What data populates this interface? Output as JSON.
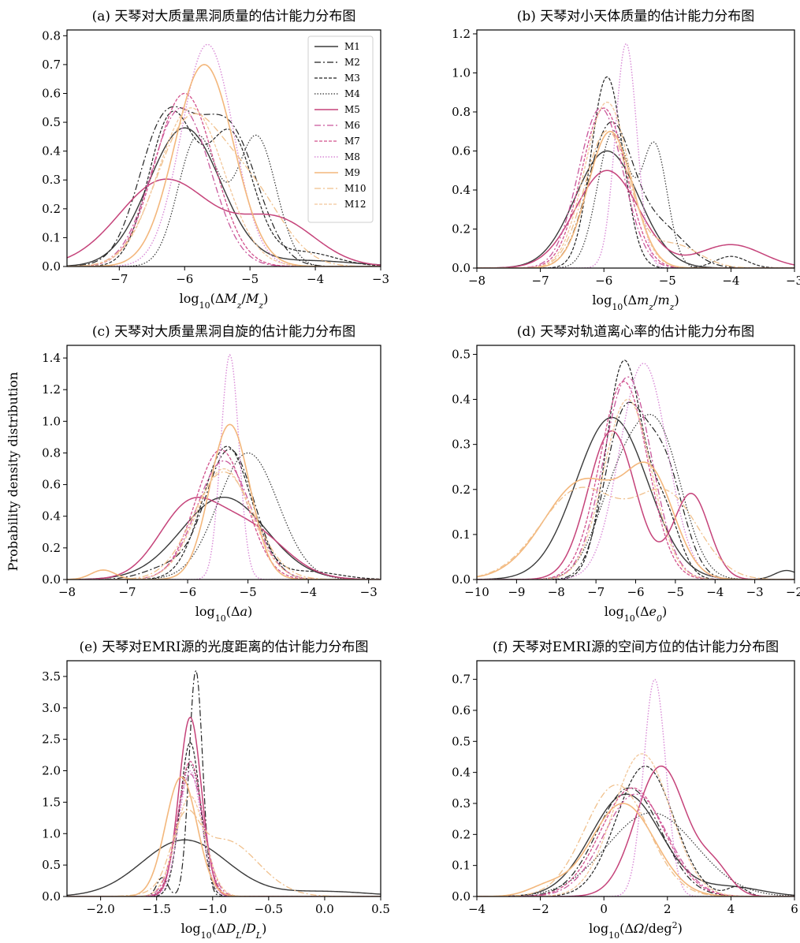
{
  "figure": {
    "ylabel": "Probability density distribution"
  },
  "series_styles": [
    {
      "name": "M1",
      "color": "#3a3a3a",
      "dash": "",
      "width": 1.4
    },
    {
      "name": "M2",
      "color": "#222222",
      "dash": "8,3,2,3",
      "width": 1.2
    },
    {
      "name": "M3",
      "color": "#222222",
      "dash": "4,2",
      "width": 1.2
    },
    {
      "name": "M4",
      "color": "#333333",
      "dash": "1.5,2",
      "width": 1.2
    },
    {
      "name": "M5",
      "color": "#c5437a",
      "dash": "",
      "width": 1.5
    },
    {
      "name": "M6",
      "color": "#c9589c",
      "dash": "8,3,2,3",
      "width": 1.3
    },
    {
      "name": "M7",
      "color": "#d2508c",
      "dash": "4,2",
      "width": 1.3
    },
    {
      "name": "M8",
      "color": "#d98ad6",
      "dash": "1.5,2",
      "width": 1.4
    },
    {
      "name": "M9",
      "color": "#f3b77c",
      "dash": "",
      "width": 1.6
    },
    {
      "name": "M10",
      "color": "#f0c08c",
      "dash": "8,3,2,3",
      "width": 1.3
    },
    {
      "name": "M12",
      "color": "#f2c79b",
      "dash": "4,2",
      "width": 1.3
    }
  ],
  "chart_data": [
    {
      "id": "a",
      "type": "line",
      "title": "(a) 天琴对大质量黑洞质量的估计能力分布图",
      "xlabel": "log₁₀(ΔMz/Mz)",
      "xlabel_parts": {
        "pre": "log",
        "sub1": "10",
        "mid": "(Δ",
        "var": "M",
        "sub2": "z",
        "mid2": "/",
        "var2": "M",
        "sub3": "z",
        "post": ")"
      },
      "xlim": [
        -7.8,
        -3
      ],
      "ylim": [
        0,
        0.82
      ],
      "xticks": [
        -7,
        -6,
        -5,
        -4,
        -3
      ],
      "yticks": [
        0.0,
        0.1,
        0.2,
        0.3,
        0.4,
        0.5,
        0.6,
        0.7,
        0.8
      ],
      "legend": {
        "placement": "top-right",
        "entries": [
          "M1",
          "M2",
          "M3",
          "M4",
          "M5",
          "M6",
          "M7",
          "M8",
          "M9",
          "M10",
          "M12"
        ]
      },
      "series": [
        {
          "name": "M1",
          "components": [
            [
              -6.0,
              0.55,
              0.48
            ],
            [
              -4.1,
              0.7,
              0.02
            ]
          ]
        },
        {
          "name": "M2",
          "components": [
            [
              -6.4,
              0.35,
              0.25
            ],
            [
              -5.9,
              0.55,
              0.38
            ],
            [
              -5.2,
              0.4,
              0.3
            ]
          ]
        },
        {
          "name": "M3",
          "components": [
            [
              -6.2,
              0.35,
              0.52
            ],
            [
              -5.3,
              0.35,
              0.45
            ],
            [
              -4.2,
              0.5,
              0.05
            ]
          ]
        },
        {
          "name": "M4",
          "components": [
            [
              -5.8,
              0.3,
              0.45
            ],
            [
              -4.9,
              0.3,
              0.45
            ]
          ]
        },
        {
          "name": "M5",
          "components": [
            [
              -6.3,
              0.7,
              0.3
            ],
            [
              -4.6,
              0.6,
              0.16
            ]
          ]
        },
        {
          "name": "M6",
          "components": [
            [
              -6.05,
              0.45,
              0.55
            ]
          ]
        },
        {
          "name": "M7",
          "components": [
            [
              -6.0,
              0.45,
              0.6
            ]
          ]
        },
        {
          "name": "M8",
          "components": [
            [
              -5.65,
              0.4,
              0.77
            ]
          ]
        },
        {
          "name": "M9",
          "components": [
            [
              -5.7,
              0.45,
              0.7
            ]
          ]
        },
        {
          "name": "M10",
          "components": [
            [
              -5.95,
              0.5,
              0.48
            ],
            [
              -5.0,
              0.5,
              0.25
            ]
          ]
        },
        {
          "name": "M12",
          "components": [
            [
              -5.9,
              0.5,
              0.55
            ]
          ]
        }
      ]
    },
    {
      "id": "b",
      "type": "line",
      "title": "(b) 天琴对小天体质量的估计能力分布图",
      "xlabel": "log₁₀(Δmz/mz)",
      "xlabel_parts": {
        "pre": "log",
        "sub1": "10",
        "mid": "(Δ",
        "var": "m",
        "sub2": "z",
        "mid2": "/",
        "var2": "m",
        "sub3": "z",
        "post": ")"
      },
      "xlim": [
        -8,
        -3
      ],
      "ylim": [
        0,
        1.22
      ],
      "xticks": [
        -8,
        -7,
        -6,
        -5,
        -4,
        -3
      ],
      "yticks": [
        0.0,
        0.2,
        0.4,
        0.6,
        0.8,
        1.0,
        1.2
      ],
      "legend": null,
      "series": [
        {
          "name": "M1",
          "components": [
            [
              -5.95,
              0.5,
              0.6
            ]
          ]
        },
        {
          "name": "M2",
          "components": [
            [
              -5.9,
              0.35,
              0.72
            ],
            [
              -5.1,
              0.4,
              0.2
            ]
          ]
        },
        {
          "name": "M3",
          "components": [
            [
              -5.95,
              0.25,
              0.98
            ],
            [
              -4.0,
              0.25,
              0.06
            ]
          ]
        },
        {
          "name": "M4",
          "components": [
            [
              -5.85,
              0.25,
              0.7
            ],
            [
              -5.2,
              0.2,
              0.62
            ]
          ]
        },
        {
          "name": "M5",
          "components": [
            [
              -5.95,
              0.5,
              0.5
            ],
            [
              -4.0,
              0.5,
              0.12
            ]
          ]
        },
        {
          "name": "M6",
          "components": [
            [
              -6.05,
              0.35,
              0.82
            ]
          ]
        },
        {
          "name": "M7",
          "components": [
            [
              -6.0,
              0.35,
              0.82
            ]
          ]
        },
        {
          "name": "M8",
          "components": [
            [
              -5.65,
              0.17,
              1.15
            ]
          ]
        },
        {
          "name": "M9",
          "components": [
            [
              -5.9,
              0.35,
              0.7
            ]
          ]
        },
        {
          "name": "M10",
          "components": [
            [
              -5.95,
              0.35,
              0.7
            ],
            [
              -4.9,
              0.4,
              0.12
            ]
          ]
        },
        {
          "name": "M12",
          "components": [
            [
              -5.95,
              0.35,
              0.85
            ]
          ]
        }
      ]
    },
    {
      "id": "c",
      "type": "line",
      "title": "(c) 天琴对大质量黑洞自旋的估计能力分布图",
      "xlabel": "log₁₀(Δa)",
      "xlabel_parts": {
        "pre": "log",
        "sub1": "10",
        "mid": "(Δ",
        "var": "a",
        "sub2": "",
        "mid2": "",
        "var2": "",
        "sub3": "",
        "post": ")"
      },
      "xlim": [
        -8,
        -2.8
      ],
      "ylim": [
        0,
        1.48
      ],
      "xticks": [
        -8,
        -7,
        -6,
        -5,
        -4,
        -3
      ],
      "yticks": [
        0.0,
        0.2,
        0.4,
        0.6,
        0.8,
        1.0,
        1.2,
        1.4
      ],
      "legend": null,
      "series": [
        {
          "name": "M1",
          "components": [
            [
              -5.4,
              0.7,
              0.52
            ]
          ]
        },
        {
          "name": "M2",
          "components": [
            [
              -6.3,
              0.4,
              0.08
            ],
            [
              -5.3,
              0.4,
              0.82
            ]
          ]
        },
        {
          "name": "M3",
          "components": [
            [
              -5.35,
              0.4,
              0.84
            ],
            [
              -4.0,
              0.5,
              0.05
            ]
          ]
        },
        {
          "name": "M4",
          "components": [
            [
              -5.0,
              0.5,
              0.8
            ]
          ]
        },
        {
          "name": "M5",
          "components": [
            [
              -6.0,
              0.5,
              0.42
            ],
            [
              -5.0,
              0.6,
              0.32
            ]
          ]
        },
        {
          "name": "M6",
          "components": [
            [
              -5.4,
              0.45,
              0.75
            ]
          ]
        },
        {
          "name": "M7",
          "components": [
            [
              -5.45,
              0.42,
              0.82
            ]
          ]
        },
        {
          "name": "M8",
          "components": [
            [
              -5.3,
              0.15,
              1.42
            ]
          ]
        },
        {
          "name": "M9",
          "components": [
            [
              -7.4,
              0.2,
              0.06
            ],
            [
              -5.3,
              0.33,
              0.98
            ]
          ]
        },
        {
          "name": "M10",
          "components": [
            [
              -5.4,
              0.5,
              0.68
            ]
          ]
        },
        {
          "name": "M12",
          "components": [
            [
              -5.4,
              0.45,
              0.7
            ]
          ]
        }
      ]
    },
    {
      "id": "d",
      "type": "line",
      "title": "(d) 天琴对轨道离心率的估计能力分布图",
      "xlabel": "log₁₀(Δe₀)",
      "xlabel_parts": {
        "pre": "log",
        "sub1": "10",
        "mid": "(Δ",
        "var": "e",
        "sub2": "0",
        "mid2": "",
        "var2": "",
        "sub3": "",
        "post": ")"
      },
      "xlim": [
        -10,
        -2
      ],
      "ylim": [
        0,
        0.52
      ],
      "xticks": [
        -10,
        -9,
        -8,
        -7,
        -6,
        -5,
        -4,
        -3,
        -2
      ],
      "yticks": [
        0.0,
        0.1,
        0.2,
        0.3,
        0.4,
        0.5
      ],
      "legend": null,
      "series": [
        {
          "name": "M1",
          "components": [
            [
              -6.6,
              0.9,
              0.36
            ],
            [
              -2.2,
              0.3,
              0.02
            ]
          ]
        },
        {
          "name": "M2",
          "components": [
            [
              -6.3,
              0.5,
              0.35
            ],
            [
              -5.3,
              0.5,
              0.25
            ]
          ]
        },
        {
          "name": "M3",
          "components": [
            [
              -6.3,
              0.45,
              0.48
            ],
            [
              -5.3,
              0.4,
              0.15
            ]
          ]
        },
        {
          "name": "M4",
          "components": [
            [
              -6.4,
              0.6,
              0.2
            ],
            [
              -5.4,
              0.6,
              0.3
            ]
          ]
        },
        {
          "name": "M5",
          "components": [
            [
              -6.6,
              0.6,
              0.33
            ],
            [
              -4.6,
              0.45,
              0.19
            ]
          ]
        },
        {
          "name": "M6",
          "components": [
            [
              -6.2,
              0.6,
              0.45
            ]
          ]
        },
        {
          "name": "M7",
          "components": [
            [
              -6.3,
              0.6,
              0.44
            ]
          ]
        },
        {
          "name": "M8",
          "components": [
            [
              -5.8,
              0.6,
              0.48
            ]
          ]
        },
        {
          "name": "M9",
          "components": [
            [
              -7.3,
              1.0,
              0.22
            ],
            [
              -5.6,
              0.6,
              0.2
            ]
          ]
        },
        {
          "name": "M10",
          "components": [
            [
              -7.4,
              1.0,
              0.2
            ],
            [
              -5.2,
              0.8,
              0.18
            ]
          ]
        },
        {
          "name": "M12",
          "components": [
            [
              -6.2,
              0.6,
              0.4
            ]
          ]
        }
      ]
    },
    {
      "id": "e",
      "type": "line",
      "title": "(e) 天琴对EMRI源的光度距离的估计能力分布图",
      "xlabel": "log₁₀(ΔDL/DL)",
      "xlabel_parts": {
        "pre": "log",
        "sub1": "10",
        "mid": "(Δ",
        "var": "D",
        "sub2": "L",
        "mid2": "/",
        "var2": "D",
        "sub3": "L",
        "post": ")"
      },
      "xlim": [
        -2.3,
        0.5
      ],
      "ylim": [
        0,
        3.75
      ],
      "xticks": [
        -2.0,
        -1.5,
        -1.0,
        -0.5,
        0.0,
        0.5
      ],
      "yticks": [
        0.0,
        0.5,
        1.0,
        1.5,
        2.0,
        2.5,
        3.0,
        3.5
      ],
      "legend": null,
      "series": [
        {
          "name": "M1",
          "components": [
            [
              -1.25,
              0.38,
              0.9
            ],
            [
              0.0,
              0.4,
              0.08
            ]
          ]
        },
        {
          "name": "M2",
          "components": [
            [
              -1.45,
              0.05,
              0.3
            ],
            [
              -1.15,
              0.06,
              3.6
            ]
          ]
        },
        {
          "name": "M3",
          "components": [
            [
              -1.2,
              0.09,
              2.45
            ]
          ]
        },
        {
          "name": "M4",
          "components": [
            [
              -1.2,
              0.11,
              2.1
            ]
          ]
        },
        {
          "name": "M5",
          "components": [
            [
              -1.2,
              0.1,
              2.85
            ]
          ]
        },
        {
          "name": "M6",
          "components": [
            [
              -1.2,
              0.12,
              1.95
            ]
          ]
        },
        {
          "name": "M7",
          "components": [
            [
              -1.2,
              0.11,
              2.15
            ]
          ]
        },
        {
          "name": "M8",
          "components": [
            [
              -1.2,
              0.1,
              2.0
            ]
          ]
        },
        {
          "name": "M9",
          "components": [
            [
              -1.28,
              0.14,
              1.9
            ]
          ]
        },
        {
          "name": "M10",
          "components": [
            [
              -1.25,
              0.12,
              0.9
            ],
            [
              -0.9,
              0.3,
              0.9
            ]
          ]
        },
        {
          "name": "M12",
          "components": [
            [
              -1.2,
              0.13,
              1.6
            ]
          ]
        }
      ]
    },
    {
      "id": "f",
      "type": "line",
      "title": "(f) 天琴对EMRI源的空间方位的估计能力分布图",
      "xlabel": "log₁₀(ΔΩ/deg²)",
      "xlabel_parts": {
        "pre": "log",
        "sub1": "10",
        "mid": "(Δ",
        "var": "Ω",
        "sub2": "",
        "mid2": "/deg",
        "var2": "",
        "sub3": "",
        "post": ")",
        "sup": "2"
      },
      "xlim": [
        -4,
        6
      ],
      "ylim": [
        0,
        0.76
      ],
      "xticks": [
        -4,
        -2,
        0,
        2,
        4,
        6
      ],
      "yticks": [
        0.0,
        0.1,
        0.2,
        0.3,
        0.4,
        0.5,
        0.6,
        0.7
      ],
      "legend": null,
      "series": [
        {
          "name": "M1",
          "components": [
            [
              0.7,
              1.1,
              0.33
            ],
            [
              4.0,
              1.0,
              0.03
            ]
          ]
        },
        {
          "name": "M2",
          "components": [
            [
              0.8,
              1.0,
              0.35
            ]
          ]
        },
        {
          "name": "M3",
          "components": [
            [
              1.3,
              0.9,
              0.42
            ],
            [
              4.2,
              0.3,
              0.03
            ]
          ]
        },
        {
          "name": "M4",
          "components": [
            [
              1.5,
              1.4,
              0.27
            ]
          ]
        },
        {
          "name": "M5",
          "components": [
            [
              1.8,
              0.8,
              0.42
            ],
            [
              3.5,
              0.5,
              0.08
            ]
          ]
        },
        {
          "name": "M6",
          "components": [
            [
              1.0,
              1.0,
              0.33
            ]
          ]
        },
        {
          "name": "M7",
          "components": [
            [
              0.9,
              1.0,
              0.35
            ]
          ]
        },
        {
          "name": "M8",
          "components": [
            [
              1.6,
              0.35,
              0.7
            ]
          ]
        },
        {
          "name": "M9",
          "components": [
            [
              0.6,
              1.0,
              0.3
            ],
            [
              -1.8,
              0.6,
              0.03
            ]
          ]
        },
        {
          "name": "M10",
          "components": [
            [
              0.4,
              1.0,
              0.36
            ]
          ]
        },
        {
          "name": "M12",
          "components": [
            [
              1.2,
              0.9,
              0.46
            ]
          ]
        }
      ]
    }
  ]
}
